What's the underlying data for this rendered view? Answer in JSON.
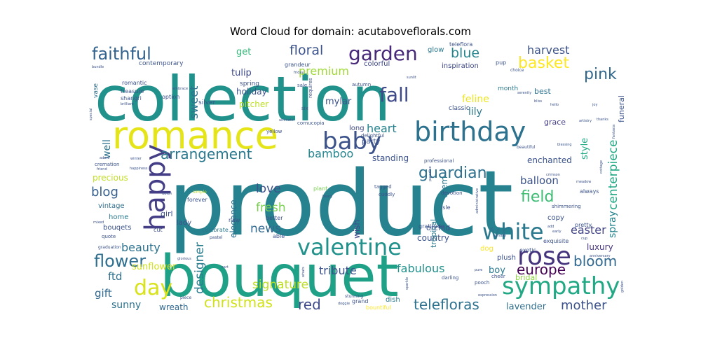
{
  "chart_data": {
    "type": "wordcloud",
    "title": "Word Cloud for domain: acutaboveflorals.com",
    "colormap": "viridis",
    "words": [
      {
        "text": "product",
        "weight": 100,
        "color": "#26828e"
      },
      {
        "text": "collection",
        "weight": 93,
        "color": "#21918c"
      },
      {
        "text": "bouquet",
        "weight": 85,
        "color": "#1fa187"
      },
      {
        "text": "romance",
        "weight": 53,
        "color": "#e5e419"
      },
      {
        "text": "birthday",
        "weight": 35,
        "color": "#2c718e"
      },
      {
        "text": "happy",
        "weight": 36,
        "color": "#433e85"
      },
      {
        "text": "sympathy",
        "weight": 30,
        "color": "#22a884"
      },
      {
        "text": "valentine",
        "weight": 30,
        "color": "#21918c"
      },
      {
        "text": "baby",
        "weight": 30,
        "color": "#3b528b"
      },
      {
        "text": "rose",
        "weight": 30,
        "color": "#46337e"
      },
      {
        "text": "white",
        "weight": 29,
        "color": "#2a788e"
      },
      {
        "text": "day",
        "weight": 27,
        "color": "#d8e219"
      },
      {
        "text": "garden",
        "weight": 26,
        "color": "#482878"
      },
      {
        "text": "fall",
        "weight": 26,
        "color": "#3e4989"
      },
      {
        "text": "faithful",
        "weight": 24,
        "color": "#33638d"
      },
      {
        "text": "flower",
        "weight": 23,
        "color": "#2e6e8e"
      },
      {
        "text": "europe",
        "weight": 20,
        "color": "#440154"
      },
      {
        "text": "guardian",
        "weight": 20,
        "color": "#2d708e"
      },
      {
        "text": "christmas",
        "weight": 20,
        "color": "#d0e11c"
      },
      {
        "text": "pink",
        "weight": 20,
        "color": "#31688e"
      },
      {
        "text": "bloom",
        "weight": 20,
        "color": "#31688e"
      },
      {
        "text": "basket",
        "weight": 20,
        "color": "#fde725"
      },
      {
        "text": "arrangement",
        "weight": 20,
        "color": "#2a788e"
      },
      {
        "text": "telefloras",
        "weight": 19,
        "color": "#2c728e"
      },
      {
        "text": "mother",
        "weight": 17,
        "color": "#3b528b"
      },
      {
        "text": "field",
        "weight": 19,
        "color": "#3dbc74"
      },
      {
        "text": "centerpiece",
        "weight": 17,
        "color": "#22a884"
      },
      {
        "text": "red",
        "weight": 18,
        "color": "#3e4a89"
      },
      {
        "text": "signature",
        "weight": 17,
        "color": "#bddf26"
      },
      {
        "text": "designer",
        "weight": 16,
        "color": "#287c8e"
      },
      {
        "text": "blog",
        "weight": 18,
        "color": "#355f8d"
      },
      {
        "text": "love",
        "weight": 17,
        "color": "#3b528b"
      },
      {
        "text": "fresh",
        "weight": 17,
        "color": "#7ad151"
      },
      {
        "text": "news",
        "weight": 17,
        "color": "#31688e"
      },
      {
        "text": "floral",
        "weight": 17,
        "color": "#3b528b"
      },
      {
        "text": "blue",
        "weight": 17,
        "color": "#25858e"
      },
      {
        "text": "sweet",
        "weight": 16,
        "color": "#2c728e"
      },
      {
        "text": "beauty",
        "weight": 15,
        "color": "#2c728e"
      },
      {
        "text": "tribute",
        "weight": 15,
        "color": "#3b528b"
      },
      {
        "text": "fabulous",
        "weight": 14,
        "color": "#21918c"
      },
      {
        "text": "premium",
        "weight": 14,
        "color": "#a0da39"
      },
      {
        "text": "easter",
        "weight": 14,
        "color": "#414487"
      },
      {
        "text": "harvest",
        "weight": 14,
        "color": "#3b528b"
      },
      {
        "text": "bamboo",
        "weight": 14,
        "color": "#25858e"
      },
      {
        "text": "spray",
        "weight": 13,
        "color": "#25838e"
      },
      {
        "text": "balloon",
        "weight": 13,
        "color": "#3b528b"
      },
      {
        "text": "heart",
        "weight": 13,
        "color": "#25838e"
      },
      {
        "text": "gift",
        "weight": 13,
        "color": "#31688e"
      },
      {
        "text": "sunny",
        "weight": 12,
        "color": "#2c728e"
      },
      {
        "text": "ftd",
        "weight": 14,
        "color": "#2d708e"
      },
      {
        "text": "well",
        "weight": 12,
        "color": "#2c728e"
      },
      {
        "text": "lily",
        "weight": 12,
        "color": "#2a788e"
      },
      {
        "text": "feline",
        "weight": 12,
        "color": "#ece51b"
      },
      {
        "text": "style",
        "weight": 12,
        "color": "#22a884"
      },
      {
        "text": "sunflower",
        "weight": 11,
        "color": "#d0e11c"
      },
      {
        "text": "elegance",
        "weight": 11,
        "color": "#2d708e"
      },
      {
        "text": "get",
        "weight": 11,
        "color": "#35b779"
      },
      {
        "text": "tulip",
        "weight": 11,
        "color": "#3e4989"
      },
      {
        "text": "mylar",
        "weight": 11,
        "color": "#3b528b"
      },
      {
        "text": "luxury",
        "weight": 11,
        "color": "#46337e"
      },
      {
        "text": "lavender",
        "weight": 10,
        "color": "#2e6e8e"
      },
      {
        "text": "wreath",
        "weight": 10,
        "color": "#31688e"
      },
      {
        "text": "boy",
        "weight": 11,
        "color": "#2a788e"
      },
      {
        "text": "stem",
        "weight": 10,
        "color": "#2a788e"
      },
      {
        "text": "enchanted",
        "weight": 10,
        "color": "#3b528b"
      },
      {
        "text": "precious",
        "weight": 10,
        "color": "#c2df23"
      },
      {
        "text": "wish",
        "weight": 10,
        "color": "#3e4989"
      },
      {
        "text": "country",
        "weight": 10,
        "color": "#3b528b"
      },
      {
        "text": "standing",
        "weight": 10,
        "color": "#3b528b"
      },
      {
        "text": "holiday",
        "weight": 10,
        "color": "#3b528b"
      },
      {
        "text": "pitcher",
        "weight": 10,
        "color": "#bddf26"
      },
      {
        "text": "bridal",
        "weight": 9,
        "color": "#8fd744"
      },
      {
        "text": "orchid",
        "weight": 9,
        "color": "#3b528b"
      },
      {
        "text": "funeral",
        "weight": 9,
        "color": "#3b528b"
      },
      {
        "text": "grace",
        "weight": 9,
        "color": "#433e85"
      },
      {
        "text": "best",
        "weight": 9,
        "color": "#2c728e"
      },
      {
        "text": "tropical",
        "weight": 9,
        "color": "#2a788e"
      },
      {
        "text": "girl",
        "weight": 9,
        "color": "#3b528b"
      },
      {
        "text": "vintage",
        "weight": 8,
        "color": "#2e6e8e"
      },
      {
        "text": "lady",
        "weight": 8,
        "color": "#3b528b"
      },
      {
        "text": "home",
        "weight": 8,
        "color": "#2a788e"
      },
      {
        "text": "bouqets",
        "weight": 8,
        "color": "#3b528b"
      },
      {
        "text": "plush",
        "weight": 8,
        "color": "#3b528b"
      },
      {
        "text": "dish",
        "weight": 8,
        "color": "#2a788e"
      },
      {
        "text": "copy",
        "weight": 8,
        "color": "#3b528b"
      },
      {
        "text": "dog",
        "weight": 8,
        "color": "#fde725"
      },
      {
        "text": "party",
        "weight": 8,
        "color": "#3b528b"
      },
      {
        "text": "long",
        "weight": 8,
        "color": "#3e4989"
      },
      {
        "text": "colorful",
        "weight": 8,
        "color": "#3e4989"
      },
      {
        "text": "inspiration",
        "weight": 8,
        "color": "#3e4989"
      },
      {
        "text": "glow",
        "weight": 8,
        "color": "#2a788e"
      },
      {
        "text": "classic",
        "weight": 7,
        "color": "#3b528b"
      },
      {
        "text": "month",
        "weight": 7,
        "color": "#2a788e"
      },
      {
        "text": "contemporary",
        "weight": 7,
        "color": "#3b528b"
      },
      {
        "text": "vase",
        "weight": 7,
        "color": "#2e6e8e"
      },
      {
        "text": "spring",
        "weight": 7,
        "color": "#3b528b"
      },
      {
        "text": "silver",
        "weight": 6,
        "color": "#3b528b"
      },
      {
        "text": "treasure",
        "weight": 6,
        "color": "#3b528b"
      },
      {
        "text": "shangri",
        "weight": 5,
        "color": "#3b528b"
      },
      {
        "text": "romantic",
        "weight": 5,
        "color": "#3b528b"
      },
      {
        "text": "option",
        "weight": 6,
        "color": "#3b528b"
      },
      {
        "text": "grandeur",
        "weight": 5,
        "color": "#3b528b"
      },
      {
        "text": "teleflora",
        "weight": 5,
        "color": "#3b528b"
      },
      {
        "text": "pup",
        "weight": 5,
        "color": "#3b528b"
      },
      {
        "text": "celebrate",
        "weight": 6,
        "color": "#2a788e"
      },
      {
        "text": "forever",
        "weight": 6,
        "color": "#3b528b"
      },
      {
        "text": "gratitude",
        "weight": 6,
        "color": "#3b528b"
      },
      {
        "text": "always",
        "weight": 6,
        "color": "#3b528b"
      },
      {
        "text": "pretty",
        "weight": 6,
        "color": "#3b528b"
      },
      {
        "text": "exquisite",
        "weight": 6,
        "color": "#3b528b"
      },
      {
        "text": "exotic",
        "weight": 6,
        "color": "#3b528b"
      },
      {
        "text": "shimmering",
        "weight": 5,
        "color": "#3b528b"
      },
      {
        "text": "isle",
        "weight": 6,
        "color": "#3b528b"
      },
      {
        "text": "devotion",
        "weight": 5,
        "color": "#3b528b"
      },
      {
        "text": "professional",
        "weight": 5,
        "color": "#3b528b"
      },
      {
        "text": "tagged",
        "weight": 5,
        "color": "#3b528b"
      },
      {
        "text": "plant",
        "weight": 6,
        "color": "#7ad151"
      },
      {
        "text": "cuddly",
        "weight": 5,
        "color": "#3b528b"
      },
      {
        "text": "better",
        "weight": 6,
        "color": "#3b528b"
      },
      {
        "text": "new",
        "weight": 6,
        "color": "#3b528b"
      },
      {
        "text": "able",
        "weight": 6,
        "color": "#3b528b"
      },
      {
        "text": "cut",
        "weight": 6,
        "color": "#3b528b"
      },
      {
        "text": "quote",
        "weight": 5,
        "color": "#3b528b"
      },
      {
        "text": "graduation",
        "weight": 4,
        "color": "#3b528b"
      },
      {
        "text": "cremation",
        "weight": 5,
        "color": "#3b528b"
      },
      {
        "text": "simple",
        "weight": 4,
        "color": "#b5de2b"
      },
      {
        "text": "pastel",
        "weight": 4,
        "color": "#3b528b"
      },
      {
        "text": "darling",
        "weight": 5,
        "color": "#3b528b"
      },
      {
        "text": "pooch",
        "weight": 5,
        "color": "#3b528b"
      },
      {
        "text": "cheer",
        "weight": 5,
        "color": "#3b528b"
      },
      {
        "text": "grand",
        "weight": 6,
        "color": "#3b528b"
      },
      {
        "text": "bountiful",
        "weight": 6,
        "color": "#fde725"
      },
      {
        "text": "stunning",
        "weight": 4,
        "color": "#3b528b"
      },
      {
        "text": "piece",
        "weight": 4,
        "color": "#3b528b"
      },
      {
        "text": "yellow",
        "weight": 4,
        "color": "#3b528b"
      },
      {
        "text": "delightful",
        "weight": 4,
        "color": "#3b528b"
      },
      {
        "text": "cornucopia",
        "weight": 4,
        "color": "#3b528b"
      },
      {
        "text": "sale",
        "weight": 4,
        "color": "#3b528b"
      },
      {
        "text": "six",
        "weight": 4,
        "color": "#3b528b"
      },
      {
        "text": "autumn",
        "weight": 4,
        "color": "#3b528b"
      },
      {
        "text": "requires",
        "weight": 4,
        "color": "#3b528b"
      },
      {
        "text": "choice",
        "weight": 4,
        "color": "#3b528b"
      },
      {
        "text": "beautiful",
        "weight": 4,
        "color": "#3b528b"
      },
      {
        "text": "blessing",
        "weight": 3,
        "color": "#3b528b"
      },
      {
        "text": "artistry",
        "weight": 3,
        "color": "#3b528b"
      },
      {
        "text": "ultimate",
        "weight": 3,
        "color": "#3b528b"
      },
      {
        "text": "serenity",
        "weight": 3,
        "color": "#3b528b"
      },
      {
        "text": "bliss",
        "weight": 3,
        "color": "#3b528b"
      },
      {
        "text": "thanks",
        "weight": 3,
        "color": "#3b528b"
      },
      {
        "text": "friend",
        "weight": 3,
        "color": "#3b528b"
      },
      {
        "text": "adore",
        "weight": 3,
        "color": "#3b528b"
      },
      {
        "text": "embrace",
        "weight": 3,
        "color": "#3b528b"
      },
      {
        "text": "brilliant",
        "weight": 3,
        "color": "#3b528b"
      },
      {
        "text": "special",
        "weight": 3,
        "color": "#3b528b"
      },
      {
        "text": "fantasia",
        "weight": 3,
        "color": "#3b528b"
      },
      {
        "text": "cottage",
        "weight": 3,
        "color": "#3b528b"
      },
      {
        "text": "meadow",
        "weight": 3,
        "color": "#3b528b"
      },
      {
        "text": "administrative",
        "weight": 3,
        "color": "#3b528b"
      },
      {
        "text": "sunday",
        "weight": 3,
        "color": "#3b528b"
      },
      {
        "text": "paradise",
        "weight": 3,
        "color": "#3b528b"
      },
      {
        "text": "crimson",
        "weight": 3,
        "color": "#3b528b"
      },
      {
        "text": "happiness",
        "weight": 3,
        "color": "#3b528b"
      },
      {
        "text": "winter",
        "weight": 3,
        "color": "#3b528b"
      },
      {
        "text": "mixed",
        "weight": 3,
        "color": "#3b528b"
      },
      {
        "text": "beary",
        "weight": 3,
        "color": "#3b528b"
      },
      {
        "text": "sparkle",
        "weight": 3,
        "color": "#3b528b"
      },
      {
        "text": "golden",
        "weight": 3,
        "color": "#3b528b"
      },
      {
        "text": "anniversary",
        "weight": 3,
        "color": "#3b528b"
      },
      {
        "text": "expression",
        "weight": 3,
        "color": "#3b528b"
      },
      {
        "text": "whats",
        "weight": 3,
        "color": "#3b528b"
      },
      {
        "text": "doggie",
        "weight": 3,
        "color": "#3b528b"
      },
      {
        "text": "glorious",
        "weight": 3,
        "color": "#3b528b"
      },
      {
        "text": "early",
        "weight": 3,
        "color": "#3b528b"
      },
      {
        "text": "dutch",
        "weight": 3,
        "color": "#3b528b"
      },
      {
        "text": "sunlit",
        "weight": 3,
        "color": "#3b528b"
      },
      {
        "text": "friday",
        "weight": 3,
        "color": "#3b528b"
      },
      {
        "text": "bundle",
        "weight": 3,
        "color": "#3b528b"
      },
      {
        "text": "cart",
        "weight": 3,
        "color": "#3b528b"
      },
      {
        "text": "pure",
        "weight": 3,
        "color": "#3b528b"
      },
      {
        "text": "cup",
        "weight": 3,
        "color": "#3b528b"
      },
      {
        "text": "hello",
        "weight": 3,
        "color": "#3b528b"
      },
      {
        "text": "joy",
        "weight": 3,
        "color": "#3b528b"
      },
      {
        "text": "add",
        "weight": 3,
        "color": "#3b528b"
      }
    ]
  }
}
